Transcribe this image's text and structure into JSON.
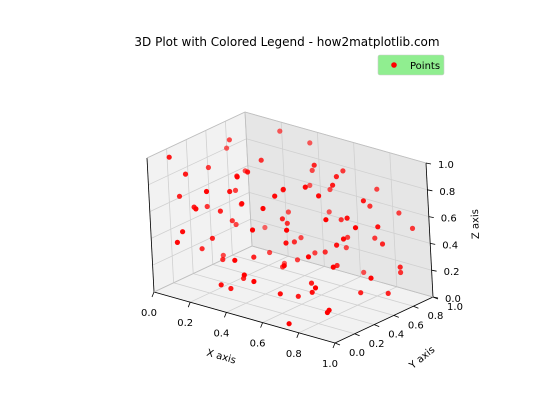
{
  "chart_data": {
    "type": "scatter3d",
    "title": "3D Plot with Colored Legend - how2matplotlib.com",
    "xlabel": "X axis",
    "ylabel": "Y axis",
    "zlabel": "Z axis",
    "xlim": [
      0,
      1
    ],
    "ylim": [
      0,
      1
    ],
    "zlim": [
      0,
      1
    ],
    "x_ticks": [
      "0.0",
      "0.2",
      "0.4",
      "0.6",
      "0.8",
      "1.0"
    ],
    "y_ticks": [
      "0.0",
      "0.2",
      "0.4",
      "0.6",
      "0.8",
      "1.0"
    ],
    "z_ticks": [
      "0.0",
      "0.2",
      "0.4",
      "0.6",
      "0.8",
      "1.0"
    ],
    "grid": true,
    "legend": {
      "placement": "top-right",
      "label": "Points",
      "facecolor": "#90ee90"
    },
    "series": [
      {
        "name": "Points",
        "color": "#ff0000",
        "points": [
          [
            0.05,
            0.62,
            0.08
          ],
          [
            0.92,
            0.1,
            0.18
          ],
          [
            0.21,
            0.33,
            0.57
          ],
          [
            0.48,
            0.77,
            0.21
          ],
          [
            0.67,
            0.12,
            0.41
          ],
          [
            0.33,
            0.55,
            0.92
          ],
          [
            0.78,
            0.81,
            0.66
          ],
          [
            0.15,
            0.05,
            0.49
          ],
          [
            0.56,
            0.44,
            0.03
          ],
          [
            0.88,
            0.57,
            0.82
          ],
          [
            0.4,
            0.21,
            0.74
          ],
          [
            0.02,
            0.88,
            0.36
          ],
          [
            0.71,
            0.3,
            0.95
          ],
          [
            0.26,
            0.71,
            0.15
          ],
          [
            0.95,
            0.92,
            0.52
          ],
          [
            0.11,
            0.18,
            0.86
          ],
          [
            0.6,
            0.66,
            0.3
          ],
          [
            0.37,
            0.95,
            0.61
          ],
          [
            0.82,
            0.26,
            0.07
          ],
          [
            0.19,
            0.48,
            0.44
          ],
          [
            0.52,
            0.09,
            0.63
          ],
          [
            0.74,
            0.52,
            0.9
          ],
          [
            0.08,
            0.36,
            0.23
          ],
          [
            0.45,
            0.84,
            0.79
          ],
          [
            0.99,
            0.41,
            0.34
          ],
          [
            0.3,
            0.14,
            0.12
          ],
          [
            0.63,
            0.98,
            0.05
          ],
          [
            0.13,
            0.74,
            0.7
          ],
          [
            0.86,
            0.03,
            0.58
          ],
          [
            0.43,
            0.6,
            0.47
          ],
          [
            0.69,
            0.35,
            0.14
          ],
          [
            0.24,
            0.91,
            0.98
          ],
          [
            0.57,
            0.24,
            0.85
          ],
          [
            0.04,
            0.15,
            0.97
          ],
          [
            0.93,
            0.68,
            0.11
          ],
          [
            0.35,
            0.39,
            0.26
          ],
          [
            0.77,
            0.86,
            0.4
          ],
          [
            0.16,
            0.58,
            0.62
          ],
          [
            0.5,
            0.02,
            0.31
          ],
          [
            0.84,
            0.47,
            0.71
          ],
          [
            0.28,
            0.27,
            0.04
          ],
          [
            0.65,
            0.79,
            0.88
          ],
          [
            0.1,
            0.96,
            0.19
          ],
          [
            0.46,
            0.5,
            0.55
          ],
          [
            0.9,
            0.2,
            0.46
          ],
          [
            0.22,
            0.07,
            0.68
          ],
          [
            0.59,
            0.89,
            0.25
          ],
          [
            0.38,
            0.32,
            0.93
          ],
          [
            0.81,
            0.62,
            0.09
          ],
          [
            0.07,
            0.45,
            0.51
          ],
          [
            0.54,
            0.17,
            0.77
          ],
          [
            0.96,
            0.76,
            0.29
          ],
          [
            0.31,
            0.83,
            0.43
          ],
          [
            0.72,
            0.05,
            0.02
          ],
          [
            0.18,
            0.29,
            0.37
          ],
          [
            0.62,
            0.56,
            0.99
          ],
          [
            0.42,
            0.7,
            0.16
          ],
          [
            0.87,
            0.37,
            0.6
          ],
          [
            0.01,
            0.78,
            0.81
          ],
          [
            0.49,
            0.13,
            0.22
          ],
          [
            0.75,
            0.94,
            0.73
          ],
          [
            0.27,
            0.42,
            0.06
          ],
          [
            0.94,
            0.08,
            0.87
          ],
          [
            0.12,
            0.64,
            0.33
          ],
          [
            0.58,
            0.31,
            0.48
          ],
          [
            0.36,
            0.99,
            0.91
          ],
          [
            0.8,
            0.19,
            0.27
          ],
          [
            0.2,
            0.53,
            0.76
          ],
          [
            0.66,
            0.73,
            0.54
          ],
          [
            0.44,
            0.04,
            0.39
          ],
          [
            0.03,
            0.25,
            0.64
          ],
          [
            0.91,
            0.85,
            0.2
          ],
          [
            0.53,
            0.4,
            0.83
          ],
          [
            0.25,
            0.87,
            0.01
          ],
          [
            0.7,
            0.11,
            0.69
          ],
          [
            0.09,
            0.67,
            0.94
          ],
          [
            0.47,
            0.59,
            0.35
          ],
          [
            0.85,
            0.97,
            0.58
          ],
          [
            0.33,
            0.22,
            0.8
          ],
          [
            0.61,
            0.49,
            0.13
          ],
          [
            0.14,
            0.01,
            0.42
          ],
          [
            0.97,
            0.54,
            0.67
          ],
          [
            0.39,
            0.8,
            0.28
          ],
          [
            0.76,
            0.34,
            0.89
          ],
          [
            0.23,
            0.93,
            0.53
          ],
          [
            0.55,
            0.28,
            0.1
          ],
          [
            0.06,
            0.5,
            0.78
          ],
          [
            0.89,
            0.72,
            0.45
          ],
          [
            0.41,
            0.16,
            0.96
          ],
          [
            0.68,
            0.63,
            0.24
          ],
          [
            0.17,
            0.4,
            0.17
          ],
          [
            0.51,
            0.9,
            0.65
          ],
          [
            0.79,
            0.44,
            0.5
          ],
          [
            0.29,
            0.06,
            0.84
          ],
          [
            0.64,
            0.82,
            0.37
          ],
          [
            0.98,
            0.3,
            0.75
          ],
          [
            0.34,
            0.69,
            0.08
          ],
          [
            0.12,
            0.23,
            0.6
          ],
          [
            0.73,
            0.58,
            0.94
          ],
          [
            0.46,
            0.97,
            0.44
          ]
        ]
      }
    ]
  }
}
